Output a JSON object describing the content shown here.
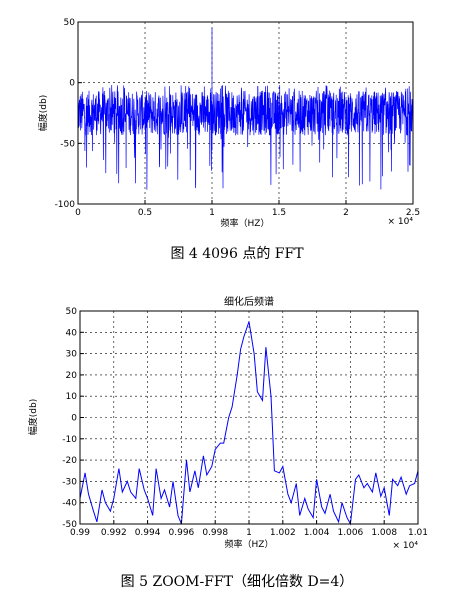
{
  "chart_data": [
    {
      "type": "line",
      "title": "",
      "xlabel": "频率（HZ）",
      "ylabel": "幅度(db)",
      "x_multiplier": "× 10⁴",
      "xlim": [
        0,
        2.5
      ],
      "ylim": [
        -100,
        50
      ],
      "xticks": [
        "0",
        "0.5",
        "1",
        "1.5",
        "2",
        "2.5"
      ],
      "yticks": [
        "50",
        "0",
        "-50",
        "-100"
      ],
      "grid": true,
      "color": "#0000ff",
      "series": [
        {
          "noise_floor": {
            "mean": -25,
            "band": [
              -42,
              -5
            ],
            "deepest_dip": -93
          },
          "peaks": [
            {
              "x": 1.0,
              "y": 45
            },
            {
              "x": 1.0,
              "y": 5
            }
          ],
          "points_count": 4096
        }
      ],
      "caption": "图 4  4096 点的 FFT"
    },
    {
      "type": "line",
      "title": "细化后频谱",
      "xlabel": "频率（HZ）",
      "ylabel": "幅度(db)",
      "x_multiplier": "× 10⁴",
      "xlim": [
        0.99,
        1.01
      ],
      "ylim": [
        -50,
        50
      ],
      "xticks": [
        "0.99",
        "0.992",
        "0.994",
        "0.996",
        "0.998",
        "1",
        "1.002",
        "1.004",
        "1.006",
        "1.008",
        "1.01"
      ],
      "yticks": [
        "50",
        "40",
        "30",
        "20",
        "10",
        "0",
        "-10",
        "-20",
        "-30",
        "-40",
        "-50"
      ],
      "grid": true,
      "color": "#0000ff",
      "series": [
        {
          "x": [
            0.99,
            0.9903,
            0.9905,
            0.9908,
            0.991,
            0.9913,
            0.9915,
            0.9918,
            0.992,
            0.9923,
            0.9925,
            0.9928,
            0.993,
            0.9933,
            0.9935,
            0.9938,
            0.994,
            0.9943,
            0.9945,
            0.9948,
            0.995,
            0.9953,
            0.9955,
            0.9958,
            0.996,
            0.9963,
            0.9965,
            0.9968,
            0.997,
            0.9973,
            0.9975,
            0.9978,
            0.998,
            0.9983,
            0.9985,
            0.9988,
            0.999,
            0.9993,
            0.9995,
            0.9997,
            1.0,
            1.0003,
            1.0005,
            1.0008,
            1.001,
            1.0013,
            1.0015,
            1.0018,
            1.002,
            1.0023,
            1.0025,
            1.0028,
            1.003,
            1.0033,
            1.0035,
            1.0038,
            1.004,
            1.0043,
            1.0045,
            1.0048,
            1.005,
            1.0053,
            1.0055,
            1.0058,
            1.006,
            1.0063,
            1.0065,
            1.0068,
            1.007,
            1.0073,
            1.0075,
            1.0078,
            1.008,
            1.0083,
            1.0085,
            1.0088,
            1.009,
            1.0093,
            1.0095,
            1.0098,
            1.01
          ],
          "y": [
            -38,
            -26,
            -36,
            -44,
            -49,
            -34,
            -40,
            -44,
            -38,
            -24,
            -35,
            -30,
            -35,
            -38,
            -24,
            -34,
            -38,
            -46,
            -24,
            -38,
            -34,
            -42,
            -30,
            -46,
            -50,
            -20,
            -35,
            -25,
            -33,
            -18,
            -27,
            -23,
            -15,
            -12,
            -12,
            0,
            5,
            20,
            32,
            38,
            45,
            30,
            12,
            8,
            33,
            10,
            -25,
            -26,
            -23,
            -36,
            -40,
            -31,
            -46,
            -38,
            -43,
            -47,
            -29,
            -42,
            -45,
            -36,
            -44,
            -49,
            -40,
            -47,
            -50,
            -29,
            -27,
            -33,
            -31,
            -35,
            -26,
            -37,
            -33,
            -46,
            -29,
            -32,
            -28,
            -36,
            -32,
            -31,
            -25
          ]
        }
      ],
      "caption": "图 5  ZOOM-FFT（细化倍数 D=4）"
    }
  ]
}
